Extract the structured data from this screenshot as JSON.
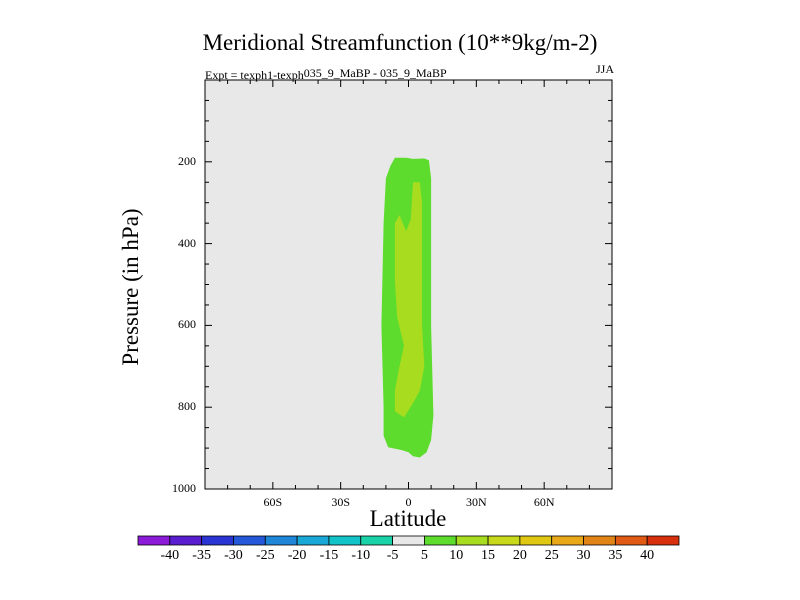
{
  "chart_data": {
    "type": "contour",
    "title": "Meridional Streamfunction (10**9kg/m-2)",
    "experiment": {
      "prefix": "Expt = texph1-texph",
      "superscript": "035_9_MaBP - 035_9_MaBP"
    },
    "season": "JJA",
    "xlabel": "Latitude",
    "ylabel": "Pressure (in hPa)",
    "xlim": [
      -90,
      90
    ],
    "ylim": [
      1000,
      0
    ],
    "x_ticks": [
      {
        "value": -60,
        "label": "60S"
      },
      {
        "value": -30,
        "label": "30S"
      },
      {
        "value": 0,
        "label": "0"
      },
      {
        "value": 30,
        "label": "30N"
      },
      {
        "value": 60,
        "label": "60N"
      }
    ],
    "y_ticks": [
      {
        "value": 200,
        "label": "200"
      },
      {
        "value": 400,
        "label": "400"
      },
      {
        "value": 600,
        "label": "600"
      },
      {
        "value": 800,
        "label": "800"
      },
      {
        "value": 1000,
        "label": "1000"
      }
    ],
    "background_color": "#e8e8e8",
    "contour_regions": [
      {
        "level": "5 to 10",
        "color": "#5ddc2e",
        "polygon": [
          [
            -6,
            190
          ],
          [
            -1,
            190
          ],
          [
            2,
            193
          ],
          [
            7,
            192
          ],
          [
            9,
            196
          ],
          [
            10,
            240
          ],
          [
            10,
            600
          ],
          [
            11,
            820
          ],
          [
            10,
            880
          ],
          [
            8,
            910
          ],
          [
            5,
            923
          ],
          [
            2,
            920
          ],
          [
            0,
            910
          ],
          [
            -3,
            905
          ],
          [
            -9,
            898
          ],
          [
            -11,
            870
          ],
          [
            -11,
            800
          ],
          [
            -12,
            600
          ],
          [
            -11,
            350
          ],
          [
            -10,
            240
          ],
          [
            -8,
            210
          ]
        ]
      },
      {
        "level": "10 to 15",
        "color": "#a8dc1e",
        "polygon": [
          [
            2,
            250
          ],
          [
            5,
            250
          ],
          [
            6,
            300
          ],
          [
            6,
            600
          ],
          [
            7,
            700
          ],
          [
            5,
            760
          ],
          [
            2,
            790
          ],
          [
            -2,
            825
          ],
          [
            -6,
            810
          ],
          [
            -6,
            760
          ],
          [
            -4,
            700
          ],
          [
            -2,
            650
          ],
          [
            -5,
            580
          ],
          [
            -6,
            490
          ],
          [
            -6,
            350
          ],
          [
            -4,
            330
          ],
          [
            -1,
            370
          ],
          [
            1,
            340
          ]
        ]
      }
    ],
    "colorbar": {
      "labels": [
        "-40",
        "-35",
        "-30",
        "-25",
        "-20",
        "-15",
        "-10",
        "-5",
        "5",
        "10",
        "15",
        "20",
        "25",
        "30",
        "35",
        "40"
      ],
      "colors": [
        "#8c1ad9",
        "#5a1ed0",
        "#2b35d4",
        "#2458d8",
        "#1f86d8",
        "#1aa8d6",
        "#12c3c8",
        "#19d2a8",
        "#e8e8e8",
        "#5ddc2e",
        "#a8dc1e",
        "#c8d81a",
        "#e0c812",
        "#e8a818",
        "#e08418",
        "#e05a14",
        "#d8300c"
      ]
    }
  }
}
